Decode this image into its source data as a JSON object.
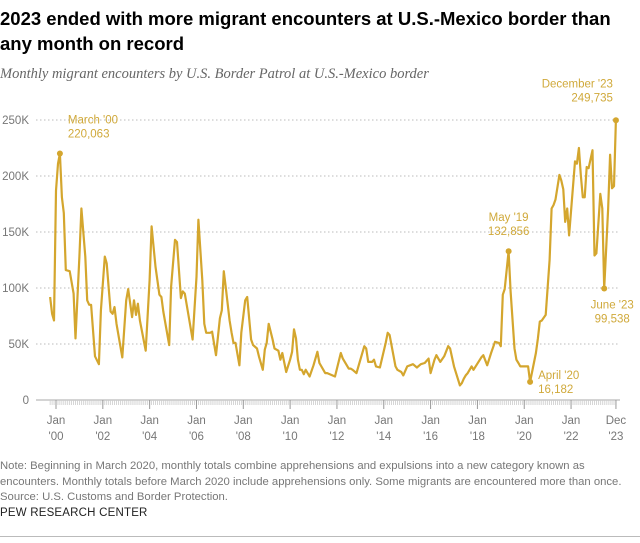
{
  "title": "2023 ended with more migrant encounters at U.S.-Mexico border than any month on record",
  "subtitle": "Monthly migrant encounters by U.S. Border Patrol at U.S.-Mexico border",
  "note": "Note: Beginning in March 2020, monthly totals combine apprehensions and expulsions into a new category known as encounters. Monthly totals before March 2020 include apprehensions only. Some migrants are encountered more than once.",
  "source": "Source: U.S. Customs and Border Protection.",
  "brand": "PEW RESEARCH CENTER",
  "chart_data": {
    "type": "line",
    "title": "",
    "xlabel": "",
    "ylabel": "",
    "ylim": [
      0,
      250000
    ],
    "xlim": [
      "1999-10",
      "2023-12"
    ],
    "grid": true,
    "line_color": "#d4a62e",
    "y_ticks": [
      0,
      50000,
      100000,
      150000,
      200000,
      250000
    ],
    "y_tick_labels": [
      "0",
      "50K",
      "100K",
      "150K",
      "200K",
      "250K"
    ],
    "x_ticks": [
      {
        "date": "2000-01",
        "line1": "Jan",
        "line2": "'00"
      },
      {
        "date": "2002-01",
        "line1": "Jan",
        "line2": "'02"
      },
      {
        "date": "2004-01",
        "line1": "Jan",
        "line2": "'04"
      },
      {
        "date": "2006-01",
        "line1": "Jan",
        "line2": "'06"
      },
      {
        "date": "2008-01",
        "line1": "Jan",
        "line2": "'08"
      },
      {
        "date": "2010-01",
        "line1": "Jan",
        "line2": "'10"
      },
      {
        "date": "2012-01",
        "line1": "Jan",
        "line2": "'12"
      },
      {
        "date": "2014-01",
        "line1": "Jan",
        "line2": "'14"
      },
      {
        "date": "2016-01",
        "line1": "Jan",
        "line2": "'16"
      },
      {
        "date": "2018-01",
        "line1": "Jan",
        "line2": "'18"
      },
      {
        "date": "2020-01",
        "line1": "Jan",
        "line2": "'20"
      },
      {
        "date": "2022-01",
        "line1": "Jan",
        "line2": "'22"
      },
      {
        "date": "2023-12",
        "line1": "Dec",
        "line2": "'23"
      }
    ],
    "series": [
      {
        "points": [
          [
            "1999-10",
            92000
          ],
          [
            "1999-11",
            77000
          ],
          [
            "1999-12",
            71000
          ],
          [
            "2000-01",
            187000
          ],
          [
            "2000-02",
            211000
          ],
          [
            "2000-03",
            220063
          ],
          [
            "2000-04",
            181000
          ],
          [
            "2000-05",
            167000
          ],
          [
            "2000-06",
            116000
          ],
          [
            "2000-08",
            115000
          ],
          [
            "2000-10",
            95000
          ],
          [
            "2000-11",
            55000
          ],
          [
            "2001-01",
            128000
          ],
          [
            "2001-02",
            171000
          ],
          [
            "2001-04",
            128000
          ],
          [
            "2001-05",
            89000
          ],
          [
            "2001-06",
            85000
          ],
          [
            "2001-07",
            85000
          ],
          [
            "2001-09",
            39000
          ],
          [
            "2001-11",
            32000
          ],
          [
            "2001-12",
            80000
          ],
          [
            "2002-02",
            128000
          ],
          [
            "2002-03",
            122000
          ],
          [
            "2002-05",
            79000
          ],
          [
            "2002-06",
            77000
          ],
          [
            "2002-07",
            83000
          ],
          [
            "2002-08",
            68000
          ],
          [
            "2002-11",
            38000
          ],
          [
            "2003-01",
            89000
          ],
          [
            "2003-02",
            99000
          ],
          [
            "2003-04",
            74000
          ],
          [
            "2003-05",
            89000
          ],
          [
            "2003-06",
            76000
          ],
          [
            "2003-07",
            86000
          ],
          [
            "2003-08",
            71000
          ],
          [
            "2003-11",
            44000
          ],
          [
            "2004-01",
            107000
          ],
          [
            "2004-02",
            155000
          ],
          [
            "2004-04",
            119000
          ],
          [
            "2004-06",
            94000
          ],
          [
            "2004-07",
            92000
          ],
          [
            "2004-08",
            79000
          ],
          [
            "2004-11",
            49000
          ],
          [
            "2004-12",
            101000
          ],
          [
            "2005-02",
            143000
          ],
          [
            "2005-03",
            141000
          ],
          [
            "2005-05",
            91000
          ],
          [
            "2005-06",
            97000
          ],
          [
            "2005-07",
            95000
          ],
          [
            "2005-11",
            54000
          ],
          [
            "2006-01",
            110000
          ],
          [
            "2006-02",
            161000
          ],
          [
            "2006-04",
            107000
          ],
          [
            "2006-05",
            68000
          ],
          [
            "2006-06",
            60000
          ],
          [
            "2006-08",
            60000
          ],
          [
            "2006-09",
            61000
          ],
          [
            "2006-11",
            40000
          ],
          [
            "2007-01",
            73000
          ],
          [
            "2007-02",
            80000
          ],
          [
            "2007-03",
            115000
          ],
          [
            "2007-04",
            101000
          ],
          [
            "2007-06",
            71000
          ],
          [
            "2007-07",
            60000
          ],
          [
            "2007-08",
            51000
          ],
          [
            "2007-09",
            51000
          ],
          [
            "2007-11",
            31000
          ],
          [
            "2007-12",
            60000
          ],
          [
            "2008-02",
            89000
          ],
          [
            "2008-03",
            92000
          ],
          [
            "2008-05",
            54000
          ],
          [
            "2008-06",
            49000
          ],
          [
            "2008-08",
            46000
          ],
          [
            "2008-09",
            39000
          ],
          [
            "2008-11",
            27000
          ],
          [
            "2008-12",
            45000
          ],
          [
            "2009-01",
            51000
          ],
          [
            "2009-02",
            68000
          ],
          [
            "2009-04",
            54000
          ],
          [
            "2009-05",
            46000
          ],
          [
            "2009-07",
            44000
          ],
          [
            "2009-08",
            36000
          ],
          [
            "2009-09",
            42000
          ],
          [
            "2009-11",
            25000
          ],
          [
            "2010-01",
            36000
          ],
          [
            "2010-02",
            43000
          ],
          [
            "2010-03",
            63000
          ],
          [
            "2010-04",
            55000
          ],
          [
            "2010-05",
            36000
          ],
          [
            "2010-06",
            27000
          ],
          [
            "2010-07",
            27000
          ],
          [
            "2010-08",
            23000
          ],
          [
            "2010-09",
            27000
          ],
          [
            "2010-11",
            21000
          ],
          [
            "2011-01",
            31000
          ],
          [
            "2011-03",
            43000
          ],
          [
            "2011-04",
            33000
          ],
          [
            "2011-07",
            24000
          ],
          [
            "2011-08",
            24000
          ],
          [
            "2011-12",
            21000
          ],
          [
            "2012-03",
            42000
          ],
          [
            "2012-04",
            37000
          ],
          [
            "2012-07",
            28000
          ],
          [
            "2012-08",
            28000
          ],
          [
            "2012-09",
            27000
          ],
          [
            "2012-11",
            24000
          ],
          [
            "2012-12",
            30000
          ],
          [
            "2013-03",
            48000
          ],
          [
            "2013-04",
            46000
          ],
          [
            "2013-05",
            34000
          ],
          [
            "2013-07",
            34000
          ],
          [
            "2013-08",
            36000
          ],
          [
            "2013-09",
            30000
          ],
          [
            "2013-11",
            29000
          ],
          [
            "2014-02",
            51000
          ],
          [
            "2014-03",
            60000
          ],
          [
            "2014-04",
            58000
          ],
          [
            "2014-07",
            30000
          ],
          [
            "2014-08",
            27000
          ],
          [
            "2014-10",
            25000
          ],
          [
            "2014-11",
            22000
          ],
          [
            "2015-01",
            30000
          ],
          [
            "2015-04",
            32000
          ],
          [
            "2015-06",
            29000
          ],
          [
            "2015-08",
            32000
          ],
          [
            "2015-10",
            33000
          ],
          [
            "2015-12",
            37000
          ],
          [
            "2016-01",
            24000
          ],
          [
            "2016-03",
            36000
          ],
          [
            "2016-04",
            40000
          ],
          [
            "2016-06",
            34000
          ],
          [
            "2016-08",
            39000
          ],
          [
            "2016-10",
            48000
          ],
          [
            "2016-11",
            46000
          ],
          [
            "2017-01",
            30000
          ],
          [
            "2017-04",
            13000
          ],
          [
            "2017-05",
            15000
          ],
          [
            "2017-06",
            19000
          ],
          [
            "2017-07",
            22000
          ],
          [
            "2017-08",
            24000
          ],
          [
            "2017-10",
            30000
          ],
          [
            "2017-11",
            27000
          ],
          [
            "2018-03",
            38000
          ],
          [
            "2018-04",
            40000
          ],
          [
            "2018-06",
            31000
          ],
          [
            "2018-08",
            42000
          ],
          [
            "2018-10",
            52000
          ],
          [
            "2018-12",
            51000
          ],
          [
            "2019-01",
            48000
          ],
          [
            "2019-02",
            94000
          ],
          [
            "2019-03",
            99000
          ],
          [
            "2019-05",
            132856
          ],
          [
            "2019-06",
            97000
          ],
          [
            "2019-08",
            46000
          ],
          [
            "2019-09",
            36000
          ],
          [
            "2019-10",
            33000
          ],
          [
            "2019-11",
            30000
          ],
          [
            "2020-01",
            30000
          ],
          [
            "2020-03",
            30000
          ],
          [
            "2020-04",
            16182
          ],
          [
            "2020-07",
            42000
          ],
          [
            "2020-08",
            55000
          ],
          [
            "2020-09",
            70000
          ],
          [
            "2020-10",
            71000
          ],
          [
            "2020-12",
            76000
          ],
          [
            "2021-02",
            125000
          ],
          [
            "2021-03",
            171000
          ],
          [
            "2021-04",
            174000
          ],
          [
            "2021-05",
            179000
          ],
          [
            "2021-07",
            201000
          ],
          [
            "2021-08",
            196000
          ],
          [
            "2021-09",
            188000
          ],
          [
            "2021-10",
            159000
          ],
          [
            "2021-11",
            171000
          ],
          [
            "2021-12",
            147000
          ],
          [
            "2022-03",
            213000
          ],
          [
            "2022-04",
            211000
          ],
          [
            "2022-05",
            225000
          ],
          [
            "2022-06",
            201000
          ],
          [
            "2022-07",
            181000
          ],
          [
            "2022-08",
            181000
          ],
          [
            "2022-09",
            208000
          ],
          [
            "2022-10",
            207000
          ],
          [
            "2022-12",
            223000
          ],
          [
            "2023-01",
            129000
          ],
          [
            "2023-02",
            131000
          ],
          [
            "2023-04",
            184000
          ],
          [
            "2023-05",
            171000
          ],
          [
            "2023-06",
            99538
          ],
          [
            "2023-08",
            170000
          ],
          [
            "2023-09",
            219000
          ],
          [
            "2023-10",
            189000
          ],
          [
            "2023-11",
            191000
          ],
          [
            "2023-12",
            249735
          ]
        ]
      }
    ],
    "annotations": [
      {
        "date": "2000-03",
        "value": 220063,
        "label": "March '00",
        "value_label": "220,063"
      },
      {
        "date": "2019-05",
        "value": 132856,
        "label": "May '19",
        "value_label": "132,856"
      },
      {
        "date": "2020-04",
        "value": 16182,
        "label": "April '20",
        "value_label": "16,182"
      },
      {
        "date": "2023-06",
        "value": 99538,
        "label": "June '23",
        "value_label": "99,538"
      },
      {
        "date": "2023-12",
        "value": 249735,
        "label": "December '23",
        "value_label": "249,735"
      }
    ]
  }
}
